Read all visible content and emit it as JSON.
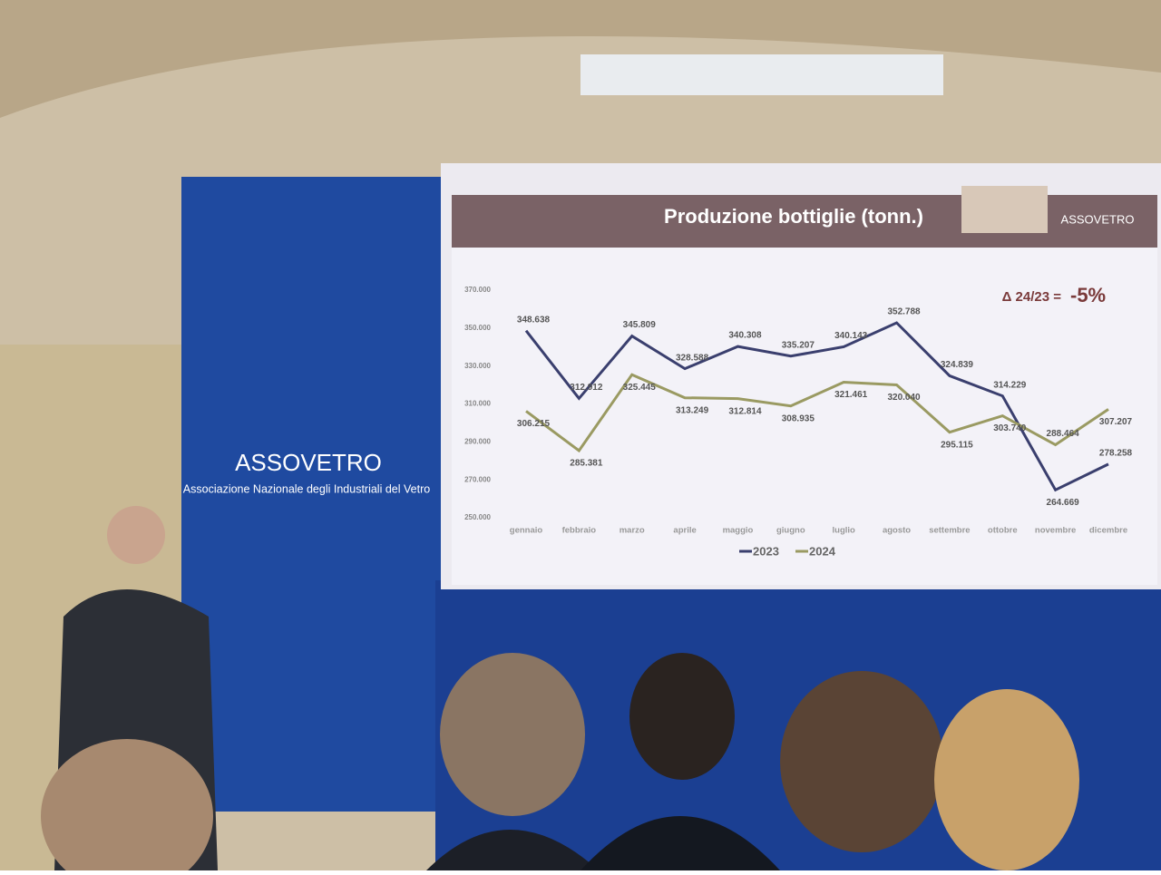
{
  "chart_data": {
    "type": "line",
    "title": "Produzione bottiglie (tonn.)",
    "brand": "ASSOVETRO",
    "wall_brand": "ASSOVETRO",
    "wall_subtitle": "Associazione Nazionale degli Industriali del Vetro",
    "annotation_label": "Δ 24/23 =",
    "annotation_value": "-5%",
    "categories": [
      "gennaio",
      "febbraio",
      "marzo",
      "aprile",
      "maggio",
      "giugno",
      "luglio",
      "agosto",
      "settembre",
      "ottobre",
      "novembre",
      "dicembre"
    ],
    "series": [
      {
        "name": "2023",
        "color": "#3a3f6e",
        "values": [
          348638,
          312912,
          345809,
          328588,
          340308,
          335207,
          340143,
          352788,
          324839,
          314229,
          264669,
          278258
        ],
        "value_labels": [
          "348.638",
          "312.912",
          "345.809",
          "328.588",
          "340.308",
          "335.207",
          "340.143",
          "352.788",
          "324.839",
          "314.229",
          "264.669",
          "278.258"
        ]
      },
      {
        "name": "2024",
        "color": "#9a9a62",
        "values": [
          306215,
          285381,
          325445,
          313249,
          312814,
          308935,
          321461,
          320040,
          295115,
          303740,
          288464,
          307207
        ],
        "value_labels": [
          "306.215",
          "285.381",
          "325.445",
          "313.249",
          "312.814",
          "308.935",
          "321.461",
          "320.040",
          "295.115",
          "303.740",
          "288.464",
          "307.207"
        ]
      }
    ],
    "ylim": [
      250000,
      370000
    ],
    "yticks": [
      {
        "value": 250000,
        "label": "250.000"
      },
      {
        "value": 270000,
        "label": "270.000"
      },
      {
        "value": 290000,
        "label": "290.000"
      },
      {
        "value": 310000,
        "label": "310.000"
      },
      {
        "value": 330000,
        "label": "330.000"
      },
      {
        "value": 350000,
        "label": "350.000"
      },
      {
        "value": 370000,
        "label": "370.000"
      }
    ],
    "grid": false
  }
}
